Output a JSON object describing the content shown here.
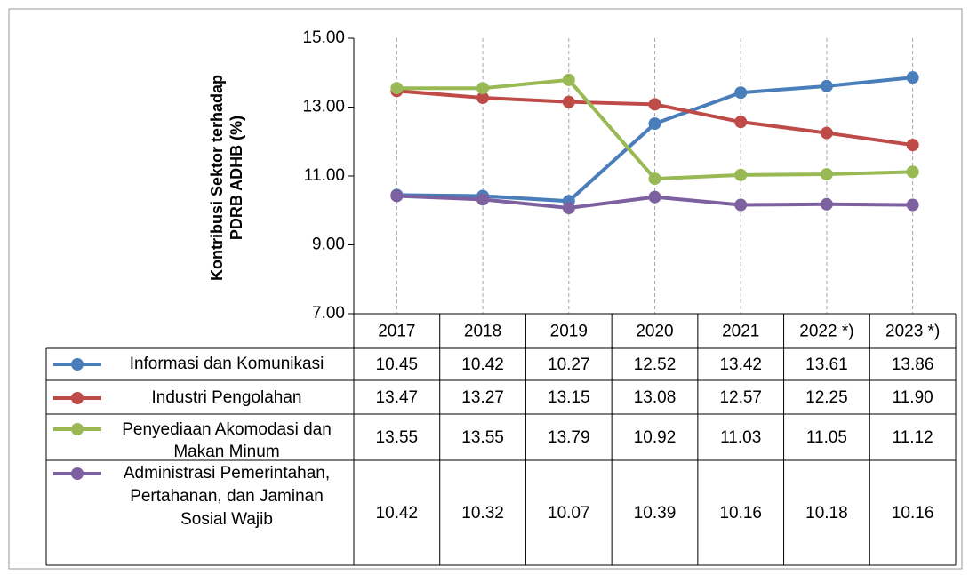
{
  "chart_data": {
    "type": "line",
    "y_label": "Kontribusi Sektor terhadap PDRB ADHB (%)",
    "categories": [
      "2017",
      "2018",
      "2019",
      "2020",
      "2021",
      "2022 *)",
      "2023 *)"
    ],
    "ylim": [
      7,
      15
    ],
    "yticks": [
      {
        "value": 7,
        "label": "7.00"
      },
      {
        "value": 9,
        "label": "9.00"
      },
      {
        "value": 11,
        "label": "11.00"
      },
      {
        "value": 13,
        "label": "13.00"
      },
      {
        "value": 15,
        "label": "15.00"
      }
    ],
    "grid": "vertical-dashed",
    "legend": "table",
    "series": [
      {
        "name": "Informasi dan Komunikasi",
        "color": "#4a7ebb",
        "values": [
          10.45,
          10.42,
          10.27,
          12.52,
          13.42,
          13.61,
          13.86
        ],
        "value_labels": [
          "10.45",
          "10.42",
          "10.27",
          "12.52",
          "13.42",
          "13.61",
          "13.86"
        ]
      },
      {
        "name": "Industri Pengolahan",
        "color": "#be4b48",
        "values": [
          13.47,
          13.27,
          13.15,
          13.08,
          12.57,
          12.25,
          11.9
        ],
        "value_labels": [
          "13.47",
          "13.27",
          "13.15",
          "13.08",
          "12.57",
          "12.25",
          "11.90"
        ]
      },
      {
        "name": "Penyediaan Akomodasi dan Makan Minum",
        "color": "#98b954",
        "values": [
          13.55,
          13.55,
          13.79,
          10.92,
          11.03,
          11.05,
          11.12
        ],
        "value_labels": [
          "13.55",
          "13.55",
          "13.79",
          "10.92",
          "11.03",
          "11.05",
          "11.12"
        ]
      },
      {
        "name": "Administrasi Pemerintahan, Pertahanan, dan Jaminan Sosial Wajib",
        "color": "#7d60a0",
        "values": [
          10.42,
          10.32,
          10.07,
          10.39,
          10.16,
          10.18,
          10.16
        ],
        "value_labels": [
          "10.42",
          "10.32",
          "10.07",
          "10.39",
          "10.16",
          "10.18",
          "10.16"
        ]
      }
    ]
  }
}
